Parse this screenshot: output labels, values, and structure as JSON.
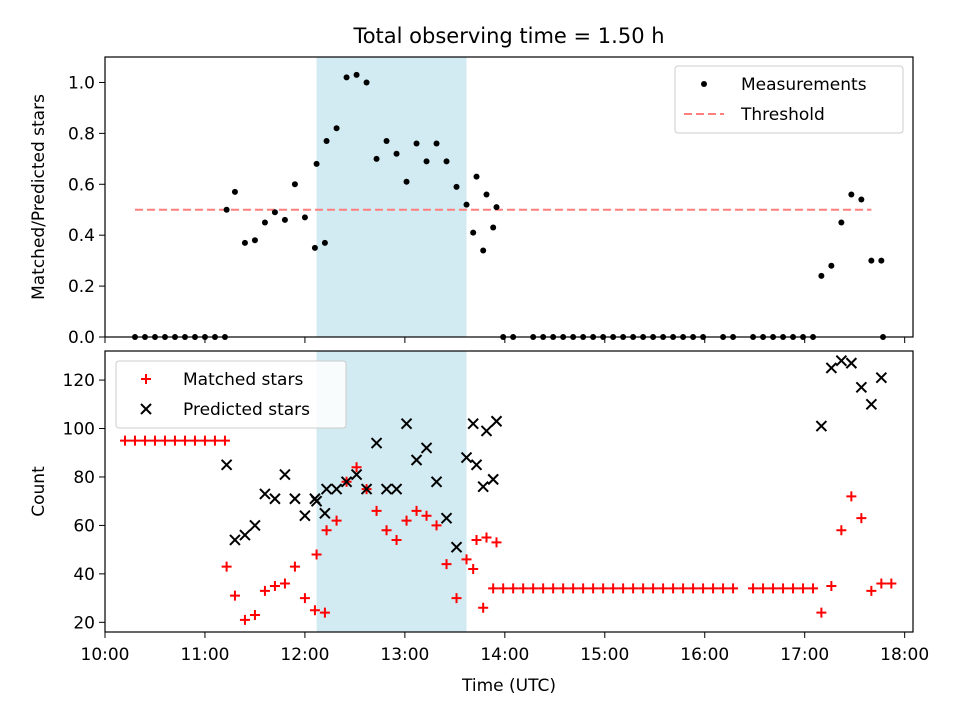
{
  "title": "Total observing time = 1.50 h",
  "colors": {
    "highlight": "#add8e6",
    "measurement": "#000000",
    "threshold": "#ff7f7f",
    "matched": "#ff0000",
    "predicted": "#000000"
  },
  "chart_data": [
    {
      "type": "scatter",
      "ylabel": "Matched/Predicted stars",
      "xlim": [
        "10:00",
        "18:05"
      ],
      "ylim": [
        0,
        1.1
      ],
      "yticks": [
        "0.0",
        "0.2",
        "0.4",
        "0.6",
        "0.8",
        "1.0"
      ],
      "yticks_values": [
        0,
        0.2,
        0.4,
        0.6,
        0.8,
        1.0
      ],
      "highlight_span": [
        "12:07",
        "13:37"
      ],
      "threshold": {
        "name": "Threshold",
        "y": 0.5,
        "x": [
          "10:18",
          "17:40"
        ]
      },
      "legend": {
        "position": "upper right",
        "entries": [
          "Measurements",
          "Threshold"
        ]
      },
      "series": [
        {
          "name": "Measurements",
          "marker": "dot",
          "points": [
            [
              "10:18",
              0
            ],
            [
              "10:24",
              0
            ],
            [
              "10:30",
              0
            ],
            [
              "10:36",
              0
            ],
            [
              "10:42",
              0
            ],
            [
              "10:48",
              0
            ],
            [
              "10:54",
              0
            ],
            [
              "11:00",
              0
            ],
            [
              "11:06",
              0
            ],
            [
              "11:12",
              0
            ],
            [
              "11:13",
              0.5
            ],
            [
              "11:18",
              0.57
            ],
            [
              "11:24",
              0.37
            ],
            [
              "11:30",
              0.38
            ],
            [
              "11:36",
              0.45
            ],
            [
              "11:42",
              0.49
            ],
            [
              "11:48",
              0.46
            ],
            [
              "11:54",
              0.6
            ],
            [
              "12:00",
              0.47
            ],
            [
              "12:06",
              0.35
            ],
            [
              "12:12",
              0.37
            ],
            [
              "12:07",
              0.68
            ],
            [
              "12:13",
              0.77
            ],
            [
              "12:19",
              0.82
            ],
            [
              "12:25",
              1.02
            ],
            [
              "12:31",
              1.03
            ],
            [
              "12:37",
              1.0
            ],
            [
              "12:43",
              0.7
            ],
            [
              "12:49",
              0.77
            ],
            [
              "12:55",
              0.72
            ],
            [
              "13:01",
              0.61
            ],
            [
              "13:07",
              0.76
            ],
            [
              "13:13",
              0.69
            ],
            [
              "13:19",
              0.76
            ],
            [
              "13:25",
              0.69
            ],
            [
              "13:31",
              0.59
            ],
            [
              "13:37",
              0.52
            ],
            [
              "13:43",
              0.63
            ],
            [
              "13:49",
              0.56
            ],
            [
              "13:55",
              0.51
            ],
            [
              "13:41",
              0.41
            ],
            [
              "13:47",
              0.34
            ],
            [
              "13:53",
              0.43
            ],
            [
              "13:59",
              0
            ],
            [
              "14:05",
              0
            ],
            [
              "14:17",
              0
            ],
            [
              "14:23",
              0
            ],
            [
              "14:29",
              0
            ],
            [
              "14:35",
              0
            ],
            [
              "14:41",
              0
            ],
            [
              "14:47",
              0
            ],
            [
              "14:53",
              0
            ],
            [
              "14:59",
              0
            ],
            [
              "15:05",
              0
            ],
            [
              "15:11",
              0
            ],
            [
              "15:17",
              0
            ],
            [
              "15:23",
              0
            ],
            [
              "15:29",
              0
            ],
            [
              "15:35",
              0
            ],
            [
              "15:41",
              0
            ],
            [
              "15:47",
              0
            ],
            [
              "15:53",
              0
            ],
            [
              "15:59",
              0
            ],
            [
              "16:11",
              0
            ],
            [
              "16:17",
              0
            ],
            [
              "16:29",
              0
            ],
            [
              "16:35",
              0
            ],
            [
              "16:41",
              0
            ],
            [
              "16:47",
              0
            ],
            [
              "16:53",
              0
            ],
            [
              "16:59",
              0
            ],
            [
              "17:05",
              0
            ],
            [
              "17:10",
              0.24
            ],
            [
              "17:16",
              0.28
            ],
            [
              "17:22",
              0.45
            ],
            [
              "17:28",
              0.56
            ],
            [
              "17:34",
              0.54
            ],
            [
              "17:40",
              0.3
            ],
            [
              "17:46",
              0.3
            ],
            [
              "17:47",
              0
            ]
          ]
        }
      ]
    },
    {
      "type": "scatter",
      "ylabel": "Count",
      "xlabel": "Time (UTC)",
      "xlim": [
        "10:00",
        "18:05"
      ],
      "ylim": [
        16,
        132
      ],
      "xticks": [
        "10:00",
        "11:00",
        "12:00",
        "13:00",
        "14:00",
        "15:00",
        "16:00",
        "17:00",
        "18:00"
      ],
      "yticks": [
        "20",
        "40",
        "60",
        "80",
        "100",
        "120"
      ],
      "yticks_values": [
        20,
        40,
        60,
        80,
        100,
        120
      ],
      "highlight_span": [
        "12:07",
        "13:37"
      ],
      "legend": {
        "position": "upper left",
        "entries": [
          "Matched stars",
          "Predicted stars"
        ]
      },
      "series": [
        {
          "name": "Matched stars",
          "marker": "plus",
          "points": [
            [
              "10:12",
              95
            ],
            [
              "10:18",
              95
            ],
            [
              "10:24",
              95
            ],
            [
              "10:30",
              95
            ],
            [
              "10:36",
              95
            ],
            [
              "10:42",
              95
            ],
            [
              "10:48",
              95
            ],
            [
              "10:54",
              95
            ],
            [
              "11:00",
              95
            ],
            [
              "11:06",
              95
            ],
            [
              "11:12",
              95
            ],
            [
              "11:13",
              43
            ],
            [
              "11:18",
              31
            ],
            [
              "11:24",
              21
            ],
            [
              "11:30",
              23
            ],
            [
              "11:36",
              33
            ],
            [
              "11:42",
              35
            ],
            [
              "11:48",
              36
            ],
            [
              "11:54",
              43
            ],
            [
              "12:00",
              30
            ],
            [
              "12:06",
              25
            ],
            [
              "12:12",
              24
            ],
            [
              "12:07",
              48
            ],
            [
              "12:13",
              58
            ],
            [
              "12:19",
              62
            ],
            [
              "12:25",
              78
            ],
            [
              "12:31",
              84
            ],
            [
              "12:37",
              75
            ],
            [
              "12:43",
              66
            ],
            [
              "12:49",
              58
            ],
            [
              "12:55",
              54
            ],
            [
              "13:01",
              62
            ],
            [
              "13:07",
              66
            ],
            [
              "13:13",
              64
            ],
            [
              "13:19",
              60
            ],
            [
              "13:25",
              44
            ],
            [
              "13:31",
              30
            ],
            [
              "13:37",
              46
            ],
            [
              "13:43",
              54
            ],
            [
              "13:49",
              55
            ],
            [
              "13:55",
              53
            ],
            [
              "13:41",
              42
            ],
            [
              "13:47",
              26
            ],
            [
              "13:53",
              34
            ],
            [
              "13:59",
              34
            ],
            [
              "14:05",
              34
            ],
            [
              "14:11",
              34
            ],
            [
              "14:17",
              34
            ],
            [
              "14:23",
              34
            ],
            [
              "14:29",
              34
            ],
            [
              "14:35",
              34
            ],
            [
              "14:41",
              34
            ],
            [
              "14:47",
              34
            ],
            [
              "14:53",
              34
            ],
            [
              "14:59",
              34
            ],
            [
              "15:05",
              34
            ],
            [
              "15:11",
              34
            ],
            [
              "15:17",
              34
            ],
            [
              "15:23",
              34
            ],
            [
              "15:29",
              34
            ],
            [
              "15:35",
              34
            ],
            [
              "15:41",
              34
            ],
            [
              "15:47",
              34
            ],
            [
              "15:53",
              34
            ],
            [
              "15:59",
              34
            ],
            [
              "16:05",
              34
            ],
            [
              "16:11",
              34
            ],
            [
              "16:17",
              34
            ],
            [
              "16:29",
              34
            ],
            [
              "16:35",
              34
            ],
            [
              "16:41",
              34
            ],
            [
              "16:47",
              34
            ],
            [
              "16:53",
              34
            ],
            [
              "16:59",
              34
            ],
            [
              "17:05",
              34
            ],
            [
              "17:10",
              24
            ],
            [
              "17:16",
              35
            ],
            [
              "17:22",
              58
            ],
            [
              "17:28",
              72
            ],
            [
              "17:34",
              63
            ],
            [
              "17:40",
              33
            ],
            [
              "17:46",
              36
            ],
            [
              "17:52",
              36
            ]
          ]
        },
        {
          "name": "Predicted stars",
          "marker": "x",
          "points": [
            [
              "11:13",
              85
            ],
            [
              "11:18",
              54
            ],
            [
              "11:24",
              56
            ],
            [
              "11:30",
              60
            ],
            [
              "11:36",
              73
            ],
            [
              "11:42",
              71
            ],
            [
              "11:48",
              81
            ],
            [
              "11:54",
              71
            ],
            [
              "12:00",
              64
            ],
            [
              "12:06",
              71
            ],
            [
              "12:12",
              65
            ],
            [
              "12:07",
              70
            ],
            [
              "12:13",
              75
            ],
            [
              "12:19",
              75
            ],
            [
              "12:25",
              78
            ],
            [
              "12:31",
              81
            ],
            [
              "12:37",
              75
            ],
            [
              "12:43",
              94
            ],
            [
              "12:49",
              75
            ],
            [
              "12:55",
              75
            ],
            [
              "13:01",
              102
            ],
            [
              "13:07",
              87
            ],
            [
              "13:13",
              92
            ],
            [
              "13:19",
              78
            ],
            [
              "13:25",
              63
            ],
            [
              "13:31",
              51
            ],
            [
              "13:37",
              88
            ],
            [
              "13:43",
              85
            ],
            [
              "13:49",
              99
            ],
            [
              "13:55",
              103
            ],
            [
              "13:41",
              102
            ],
            [
              "13:47",
              76
            ],
            [
              "13:53",
              79
            ],
            [
              "17:10",
              101
            ],
            [
              "17:16",
              125
            ],
            [
              "17:22",
              128
            ],
            [
              "17:28",
              127
            ],
            [
              "17:34",
              117
            ],
            [
              "17:40",
              110
            ],
            [
              "17:46",
              121
            ]
          ]
        }
      ]
    }
  ]
}
